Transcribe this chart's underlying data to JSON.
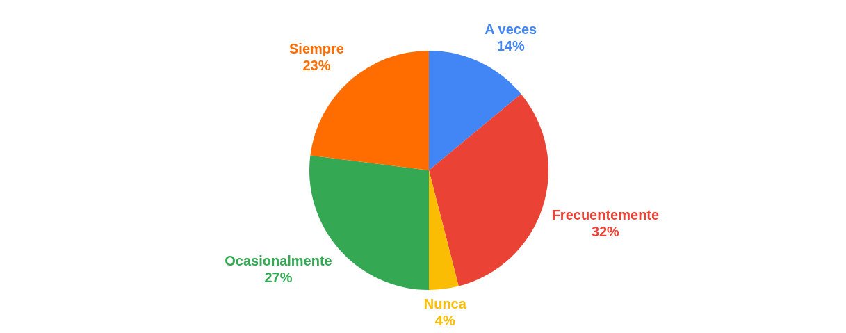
{
  "chart_data": {
    "type": "pie",
    "categories": [
      "A veces",
      "Frecuentemente",
      "Nunca",
      "Ocasionalmente",
      "Siempre"
    ],
    "values": [
      14,
      32,
      4,
      27,
      23
    ],
    "colors": [
      "#4285f4",
      "#ea4335",
      "#fbbc04",
      "#34a853",
      "#ff6d01"
    ],
    "value_labels": [
      "14%",
      "32%",
      "4%",
      "27%",
      "23%"
    ],
    "legend": false
  }
}
